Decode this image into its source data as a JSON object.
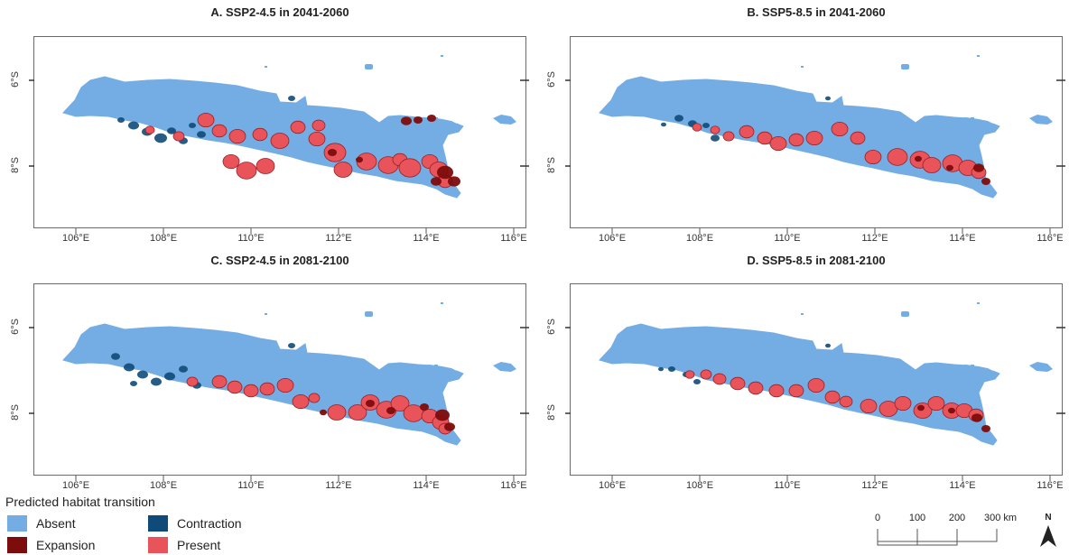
{
  "panels": [
    {
      "title": "A. SSP2-4.5 in 2041-2060",
      "variant": "A"
    },
    {
      "title": "B. SSP5-8.5 in 2041-2060",
      "variant": "B"
    },
    {
      "title": "C. SSP2-4.5 in 2081-2100",
      "variant": "C"
    },
    {
      "title": "D. SSP5-8.5 in 2081-2100",
      "variant": "D"
    }
  ],
  "axes": {
    "x_ticks": [
      "106°E",
      "108°E",
      "110°E",
      "112°E",
      "114°E",
      "116°E"
    ],
    "y_ticks": [
      "6°S",
      "8°S"
    ]
  },
  "legend": {
    "title": "Predicted habitat transition",
    "items": [
      {
        "label": "Absent",
        "color": "#74ade4"
      },
      {
        "label": "Contraction",
        "color": "#0f4a78"
      },
      {
        "label": "Expansion",
        "color": "#7d0c0c"
      },
      {
        "label": "Present",
        "color": "#e8545a"
      }
    ]
  },
  "scale_bar": {
    "labels": [
      "0",
      "100",
      "200",
      "300 km"
    ]
  },
  "north_arrow": {
    "label": "N"
  }
}
